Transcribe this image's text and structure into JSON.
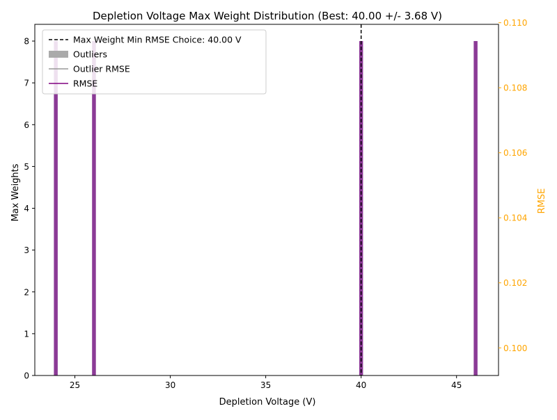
{
  "chart_data": {
    "type": "bar",
    "title": "Depletion Voltage Max Weight Distribution (Best: 40.00 +/- 3.68 V)",
    "xlabel": "Depletion Voltage (V)",
    "ylabel": "Max Weights",
    "y2label": "RMSE",
    "xlim": [
      22.9,
      47.2
    ],
    "ylim": [
      0,
      8.4
    ],
    "y2lim": [
      0.09915,
      0.10995
    ],
    "xticks": [
      25,
      30,
      35,
      40,
      45
    ],
    "yticks": [
      0,
      1,
      2,
      3,
      4,
      5,
      6,
      7,
      8
    ],
    "y2ticks": [
      0.1,
      0.102,
      0.104,
      0.106,
      0.108,
      0.11
    ],
    "xtick_labels": [
      "25",
      "30",
      "35",
      "40",
      "45"
    ],
    "ytick_labels": [
      "0",
      "1",
      "2",
      "3",
      "4",
      "5",
      "6",
      "7",
      "8"
    ],
    "y2tick_labels": [
      "0.100",
      "0.102",
      "0.104",
      "0.106",
      "0.108",
      "0.110"
    ],
    "bars": {
      "x": [
        24,
        26,
        40,
        46
      ],
      "values": [
        8,
        8,
        8,
        8
      ],
      "width": 0.2
    },
    "best_line": {
      "x": 40,
      "style": "dashed",
      "color": "#000000"
    },
    "legend": {
      "position": "upper-left",
      "entries": [
        {
          "label": "Max Weight Min RMSE Choice: 40.00 V",
          "kind": "dashed-line",
          "color": "#000000"
        },
        {
          "label": "Outliers",
          "kind": "patch",
          "color": "#aaaaaa"
        },
        {
          "label": "Outlier RMSE",
          "kind": "line",
          "color": "#999999"
        },
        {
          "label": "RMSE",
          "kind": "line",
          "color": "#800080"
        }
      ]
    },
    "colors": {
      "bar": "#8b3a96",
      "rmse": "#800080",
      "rmse_axis": "#ffa500",
      "outliers": "#aaaaaa",
      "outlier_rmse": "#999999",
      "axes": "#000000"
    },
    "grid": false
  }
}
